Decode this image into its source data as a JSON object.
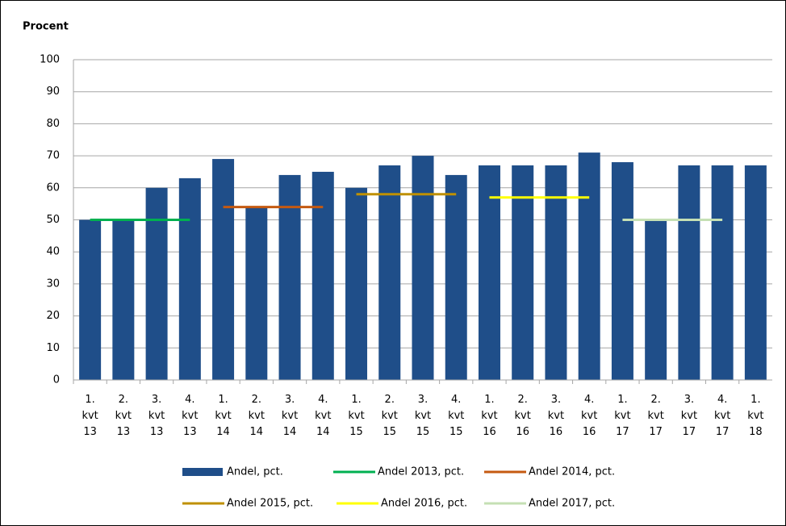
{
  "chart_data": {
    "type": "bar",
    "y_label": "Procent",
    "categories": [
      "1. kvt 13",
      "2. kvt 13",
      "3. kvt 13",
      "4. kvt 13",
      "1. kvt 14",
      "2. kvt 14",
      "3. kvt 14",
      "4. kvt 14",
      "1. kvt 15",
      "2. kvt 15",
      "3. kvt 15",
      "4. kvt 15",
      "1. kvt 16",
      "2. kvt 16",
      "3. kvt 16",
      "4. kvt 16",
      "1. kvt 17",
      "2. kvt 17",
      "3. kvt 17",
      "4. kvt 17",
      "1. kvt 18"
    ],
    "series": [
      {
        "name": "Andel, pct.",
        "type": "bar",
        "color": "#1f4e89",
        "values": [
          50,
          50,
          60,
          63,
          69,
          54,
          64,
          65,
          60,
          67,
          70,
          64,
          67,
          67,
          67,
          71,
          68,
          50,
          67,
          67,
          67
        ]
      },
      {
        "name": "Andel 2013, pct.",
        "type": "line",
        "color": "#00b050",
        "values": [
          50,
          50,
          50,
          50,
          null,
          null,
          null,
          null,
          null,
          null,
          null,
          null,
          null,
          null,
          null,
          null,
          null,
          null,
          null,
          null,
          null
        ]
      },
      {
        "name": "Andel 2014, pct.",
        "type": "line",
        "color": "#c55a11",
        "values": [
          null,
          null,
          null,
          null,
          54,
          54,
          54,
          54,
          null,
          null,
          null,
          null,
          null,
          null,
          null,
          null,
          null,
          null,
          null,
          null,
          null
        ]
      },
      {
        "name": "Andel 2015, pct.",
        "type": "line",
        "color": "#bf9000",
        "values": [
          null,
          null,
          null,
          null,
          null,
          null,
          null,
          null,
          58,
          58,
          58,
          58,
          null,
          null,
          null,
          null,
          null,
          null,
          null,
          null,
          null
        ]
      },
      {
        "name": "Andel 2016, pct.",
        "type": "line",
        "color": "#ffff00",
        "values": [
          null,
          null,
          null,
          null,
          null,
          null,
          null,
          null,
          null,
          null,
          null,
          null,
          57,
          57,
          57,
          57,
          null,
          null,
          null,
          null,
          null
        ]
      },
      {
        "name": "Andel 2017, pct.",
        "type": "line",
        "color": "#c5e0b4",
        "values": [
          null,
          null,
          null,
          null,
          null,
          null,
          null,
          null,
          null,
          null,
          null,
          null,
          null,
          null,
          null,
          null,
          50,
          50,
          50,
          50,
          null
        ]
      }
    ],
    "ylim": [
      0,
      100
    ],
    "yticks": [
      0,
      10,
      20,
      30,
      40,
      50,
      60,
      70,
      80,
      90,
      100
    ],
    "grid": true
  }
}
